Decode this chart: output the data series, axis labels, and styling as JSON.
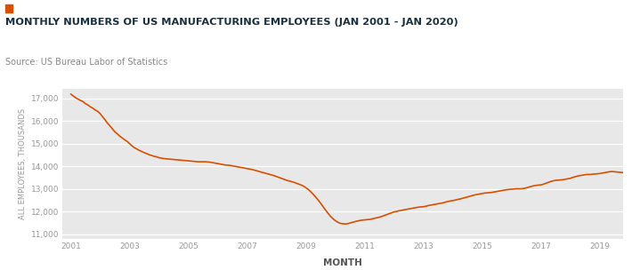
{
  "title": "MONTHLY NUMBERS OF US MANUFACTURING EMPLOYEES (JAN 2001 - JAN 2020)",
  "subtitle": "Source: US Bureau Labor of Statistics",
  "xlabel": "MONTH",
  "ylabel": "ALL EMPLOYEES, THOUSANDS",
  "line_color": "#D94F00",
  "background_color": "#E8E8E8",
  "fig_background": "#FFFFFF",
  "title_color": "#1a3040",
  "subtitle_color": "#888888",
  "tick_color": "#aaaaaa",
  "ylim": [
    10800,
    17400
  ],
  "yticks": [
    11000,
    12000,
    13000,
    14000,
    15000,
    16000,
    17000
  ],
  "xticks": [
    2001,
    2003,
    2005,
    2007,
    2009,
    2011,
    2013,
    2015,
    2017,
    2019
  ],
  "marker_color": "#D94F00",
  "data": [
    17182,
    17100,
    17020,
    16960,
    16900,
    16850,
    16760,
    16700,
    16620,
    16560,
    16480,
    16420,
    16320,
    16180,
    16050,
    15900,
    15780,
    15650,
    15520,
    15430,
    15330,
    15250,
    15170,
    15100,
    15000,
    14900,
    14820,
    14760,
    14700,
    14650,
    14600,
    14560,
    14510,
    14480,
    14440,
    14420,
    14380,
    14360,
    14340,
    14330,
    14320,
    14310,
    14300,
    14290,
    14280,
    14270,
    14260,
    14250,
    14240,
    14230,
    14220,
    14210,
    14200,
    14200,
    14200,
    14200,
    14190,
    14180,
    14160,
    14140,
    14120,
    14100,
    14080,
    14060,
    14050,
    14040,
    14020,
    14000,
    13980,
    13960,
    13940,
    13920,
    13900,
    13880,
    13860,
    13830,
    13800,
    13770,
    13740,
    13710,
    13680,
    13650,
    13620,
    13590,
    13550,
    13510,
    13470,
    13430,
    13390,
    13360,
    13330,
    13300,
    13260,
    13220,
    13180,
    13130,
    13060,
    12980,
    12880,
    12770,
    12650,
    12520,
    12380,
    12230,
    12080,
    11940,
    11810,
    11700,
    11610,
    11540,
    11490,
    11470,
    11460,
    11470,
    11500,
    11530,
    11560,
    11590,
    11610,
    11630,
    11640,
    11650,
    11660,
    11680,
    11710,
    11730,
    11760,
    11790,
    11830,
    11870,
    11910,
    11950,
    11990,
    12010,
    12040,
    12060,
    12080,
    12100,
    12120,
    12140,
    12160,
    12180,
    12200,
    12210,
    12220,
    12240,
    12270,
    12290,
    12310,
    12330,
    12350,
    12370,
    12390,
    12420,
    12450,
    12470,
    12490,
    12510,
    12540,
    12560,
    12590,
    12620,
    12650,
    12680,
    12710,
    12740,
    12760,
    12780,
    12800,
    12820,
    12830,
    12840,
    12850,
    12870,
    12890,
    12910,
    12930,
    12950,
    12970,
    12980,
    12990,
    13000,
    13010,
    13010,
    13010,
    13020,
    13050,
    13080,
    13110,
    13140,
    13160,
    13170,
    13180,
    13210,
    13250,
    13290,
    13330,
    13360,
    13380,
    13390,
    13400,
    13410,
    13430,
    13450,
    13470,
    13510,
    13540,
    13570,
    13590,
    13610,
    13630,
    13640,
    13640,
    13650,
    13660,
    13670,
    13680,
    13700,
    13720,
    13740,
    13760,
    13770,
    13760,
    13750,
    13740,
    13730,
    13720,
    13720,
    13720,
    13730,
    13740,
    13750,
    13760,
    13790
  ]
}
